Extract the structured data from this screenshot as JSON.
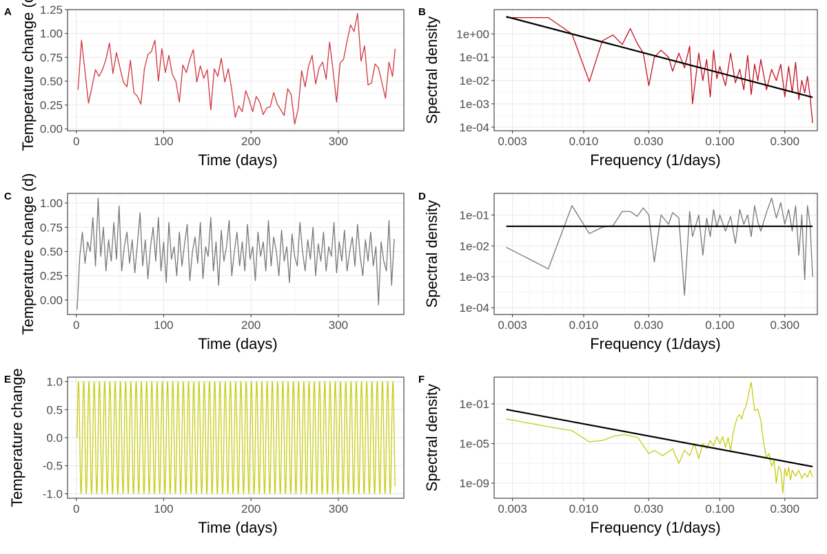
{
  "colors": {
    "panel_a": "#d1343f",
    "panel_b": "#c40f1f",
    "panel_c": "#777777",
    "panel_d": "#777777",
    "panel_e": "#c6cc12",
    "panel_f": "#c6cc12",
    "fit_line": "#000000",
    "grid_major": "#ebebeb",
    "grid_minor": "#f4f4f4",
    "frame": "#333333"
  },
  "chart_data": [
    {
      "panel": "A",
      "type": "line",
      "xlabel": "Time (days)",
      "ylabel": "Temperature change (d)",
      "xlim": [
        -10,
        375
      ],
      "ylim": [
        -0.02,
        1.25
      ],
      "xticks": [
        0,
        100,
        200,
        300
      ],
      "yticks": [
        0.0,
        0.25,
        0.5,
        0.75,
        1.0,
        1.25
      ],
      "ytick_labels": [
        "0.00",
        "0.25",
        "0.50",
        "0.75",
        "1.00",
        "1.25"
      ],
      "grid": true,
      "series": [
        {
          "x": [
            2,
            6,
            10,
            14,
            18,
            22,
            26,
            30,
            34,
            38,
            42,
            46,
            50,
            54,
            58,
            62,
            66,
            70,
            74,
            78,
            82,
            86,
            90,
            94,
            98,
            102,
            106,
            110,
            114,
            118,
            122,
            126,
            130,
            134,
            138,
            142,
            146,
            150,
            154,
            158,
            162,
            166,
            170,
            174,
            178,
            182,
            186,
            190,
            194,
            198,
            202,
            206,
            210,
            214,
            218,
            222,
            226,
            230,
            234,
            238,
            242,
            246,
            250,
            254,
            258,
            262,
            266,
            270,
            274,
            278,
            282,
            286,
            290,
            294,
            298,
            302,
            306,
            310,
            314,
            318,
            322,
            326,
            330,
            334,
            338,
            342,
            346,
            350,
            354,
            358,
            362,
            365
          ],
          "y": [
            0.41,
            0.93,
            0.6,
            0.27,
            0.44,
            0.62,
            0.55,
            0.62,
            0.73,
            0.9,
            0.58,
            0.8,
            0.64,
            0.49,
            0.44,
            0.72,
            0.38,
            0.34,
            0.26,
            0.63,
            0.78,
            0.81,
            0.93,
            0.5,
            0.84,
            0.59,
            0.77,
            0.57,
            0.5,
            0.28,
            0.67,
            0.59,
            0.73,
            0.83,
            0.49,
            0.66,
            0.53,
            0.62,
            0.2,
            0.63,
            0.55,
            0.74,
            0.49,
            0.63,
            0.41,
            0.12,
            0.24,
            0.18,
            0.4,
            0.3,
            0.18,
            0.34,
            0.28,
            0.15,
            0.22,
            0.23,
            0.38,
            0.26,
            0.2,
            0.14,
            0.42,
            0.36,
            0.05,
            0.21,
            0.61,
            0.44,
            0.66,
            0.77,
            0.47,
            0.64,
            0.7,
            0.52,
            0.91,
            0.61,
            0.28,
            0.69,
            0.73,
            0.92,
            1.09,
            1.02,
            1.21,
            0.71,
            0.87,
            0.46,
            0.48,
            0.68,
            0.64,
            0.48,
            0.32,
            0.7,
            0.55,
            0.84
          ]
        }
      ]
    },
    {
      "panel": "B",
      "type": "line",
      "xlabel": "Frequency (1/days)",
      "ylabel": "Spectral density",
      "xscale": "log",
      "yscale": "log",
      "xlim": [
        0.0022,
        0.52
      ],
      "ylim": [
        7e-05,
        11
      ],
      "xticks": [
        0.003,
        0.01,
        0.03,
        0.1,
        0.3
      ],
      "xtick_labels": [
        "0.003",
        "0.010",
        "0.030",
        "0.100",
        "0.300"
      ],
      "yticks": [
        0.0001,
        0.001,
        0.01,
        0.1,
        1
      ],
      "ytick_labels": [
        "1e-04",
        "1e-03",
        "1e-02",
        "1e-01",
        "1e+00"
      ],
      "grid": true,
      "series": [
        {
          "x": [
            0.0027,
            0.0055,
            0.0082,
            0.011,
            0.0137,
            0.0164,
            0.0192,
            0.022,
            0.0247,
            0.0274,
            0.0301,
            0.033,
            0.037,
            0.042,
            0.045,
            0.05,
            0.055,
            0.06,
            0.063,
            0.07,
            0.075,
            0.08,
            0.085,
            0.09,
            0.095,
            0.1,
            0.11,
            0.12,
            0.13,
            0.14,
            0.15,
            0.16,
            0.17,
            0.18,
            0.19,
            0.2,
            0.22,
            0.24,
            0.26,
            0.28,
            0.3,
            0.32,
            0.34,
            0.36,
            0.38,
            0.4,
            0.42,
            0.44,
            0.46,
            0.48
          ],
          "y": [
            5,
            5,
            1.0,
            0.009,
            0.5,
            0.9,
            0.35,
            1.7,
            0.4,
            0.15,
            0.006,
            0.1,
            0.2,
            0.1,
            0.025,
            0.15,
            0.035,
            0.3,
            0.001,
            0.15,
            0.01,
            0.08,
            0.002,
            0.2,
            0.012,
            0.04,
            0.006,
            0.15,
            0.008,
            0.03,
            0.004,
            0.12,
            0.0025,
            0.05,
            0.01,
            0.08,
            0.004,
            0.03,
            0.01,
            0.05,
            0.002,
            0.04,
            0.003,
            0.06,
            0.0015,
            0.01,
            0.003,
            0.015,
            0.002,
            0.00015
          ]
        }
      ],
      "fit_line": {
        "x": [
          0.0027,
          0.48
        ],
        "y": [
          5.5,
          0.0019
        ]
      }
    },
    {
      "panel": "C",
      "type": "line",
      "xlabel": "Time (days)",
      "ylabel": "Temperature change (d)",
      "xlim": [
        -10,
        375
      ],
      "ylim": [
        -0.15,
        1.1
      ],
      "xticks": [
        0,
        100,
        200,
        300
      ],
      "yticks": [
        0.0,
        0.25,
        0.5,
        0.75,
        1.0
      ],
      "ytick_labels": [
        "0.00",
        "0.25",
        "0.50",
        "0.75",
        "1.00"
      ],
      "grid": true,
      "series": [
        {
          "x": [
            1,
            4,
            7,
            10,
            13,
            16,
            19,
            22,
            25,
            28,
            31,
            34,
            37,
            40,
            43,
            46,
            49,
            52,
            55,
            58,
            61,
            64,
            67,
            70,
            73,
            76,
            79,
            82,
            85,
            88,
            91,
            94,
            97,
            100,
            103,
            106,
            109,
            112,
            115,
            118,
            121,
            124,
            127,
            130,
            133,
            136,
            139,
            142,
            145,
            148,
            151,
            154,
            157,
            160,
            163,
            166,
            169,
            172,
            175,
            178,
            181,
            184,
            187,
            190,
            193,
            196,
            199,
            202,
            205,
            208,
            211,
            214,
            217,
            220,
            223,
            226,
            229,
            232,
            235,
            238,
            241,
            244,
            247,
            250,
            253,
            256,
            259,
            262,
            265,
            268,
            271,
            274,
            277,
            280,
            283,
            286,
            289,
            292,
            295,
            298,
            301,
            304,
            307,
            310,
            313,
            316,
            319,
            322,
            325,
            328,
            331,
            334,
            337,
            340,
            343,
            346,
            349,
            352,
            355,
            358,
            361,
            364
          ],
          "y": [
            -0.1,
            0.45,
            0.7,
            0.38,
            0.6,
            0.5,
            0.85,
            0.35,
            1.05,
            0.45,
            0.75,
            0.3,
            0.62,
            0.4,
            0.8,
            0.42,
            0.97,
            0.3,
            0.55,
            0.7,
            0.38,
            0.62,
            0.28,
            0.58,
            0.9,
            0.35,
            0.62,
            0.22,
            0.55,
            0.75,
            0.4,
            0.85,
            0.3,
            0.6,
            0.18,
            0.8,
            0.42,
            0.55,
            0.25,
            0.7,
            0.35,
            0.58,
            0.78,
            0.2,
            0.5,
            0.65,
            0.38,
            0.8,
            0.22,
            0.55,
            0.45,
            0.85,
            0.3,
            0.6,
            0.15,
            0.72,
            0.4,
            0.55,
            0.82,
            0.25,
            0.5,
            0.7,
            0.35,
            0.6,
            0.3,
            0.78,
            0.42,
            0.55,
            0.2,
            0.7,
            0.45,
            0.6,
            0.3,
            0.82,
            0.35,
            0.65,
            0.5,
            0.25,
            0.72,
            0.4,
            0.55,
            0.18,
            0.68,
            0.45,
            0.35,
            0.8,
            0.5,
            0.3,
            0.62,
            0.42,
            0.75,
            0.25,
            0.58,
            0.4,
            0.7,
            0.3,
            0.55,
            0.45,
            0.8,
            0.28,
            0.6,
            0.4,
            0.72,
            0.3,
            0.5,
            0.65,
            0.35,
            0.78,
            0.45,
            0.25,
            0.62,
            0.4,
            0.7,
            0.35,
            0.55,
            -0.05,
            0.6,
            0.4,
            0.3,
            0.82,
            0.15,
            0.63
          ]
        }
      ]
    },
    {
      "panel": "D",
      "type": "line",
      "xlabel": "Frequency (1/days)",
      "ylabel": "Spectral density",
      "xscale": "log",
      "yscale": "log",
      "xlim": [
        0.0022,
        0.52
      ],
      "ylim": [
        6e-05,
        0.5
      ],
      "xticks": [
        0.003,
        0.01,
        0.03,
        0.1,
        0.3
      ],
      "xtick_labels": [
        "0.003",
        "0.010",
        "0.030",
        "0.100",
        "0.300"
      ],
      "yticks": [
        0.0001,
        0.001,
        0.01,
        0.1
      ],
      "ytick_labels": [
        "1e-04",
        "1e-03",
        "1e-02",
        "1e-01"
      ],
      "grid": true,
      "series": [
        {
          "x": [
            0.0027,
            0.0055,
            0.0082,
            0.011,
            0.0137,
            0.0164,
            0.0192,
            0.022,
            0.0247,
            0.0274,
            0.0301,
            0.033,
            0.037,
            0.042,
            0.045,
            0.05,
            0.055,
            0.06,
            0.063,
            0.07,
            0.075,
            0.08,
            0.085,
            0.09,
            0.095,
            0.1,
            0.11,
            0.12,
            0.13,
            0.14,
            0.15,
            0.16,
            0.17,
            0.18,
            0.19,
            0.2,
            0.22,
            0.24,
            0.26,
            0.28,
            0.3,
            0.32,
            0.34,
            0.36,
            0.38,
            0.4,
            0.42,
            0.44,
            0.46,
            0.48
          ],
          "y": [
            0.009,
            0.0018,
            0.2,
            0.025,
            0.04,
            0.045,
            0.13,
            0.13,
            0.09,
            0.17,
            0.1,
            0.003,
            0.1,
            0.05,
            0.12,
            0.08,
            0.00025,
            0.13,
            0.02,
            0.1,
            0.005,
            0.08,
            0.02,
            0.15,
            0.04,
            0.1,
            0.03,
            0.09,
            0.012,
            0.15,
            0.05,
            0.1,
            0.02,
            0.2,
            0.06,
            0.03,
            0.12,
            0.35,
            0.08,
            0.25,
            0.05,
            0.15,
            0.03,
            0.2,
            0.005,
            0.1,
            0.0008,
            0.2,
            0.05,
            0.001
          ]
        }
      ],
      "fit_line": {
        "x": [
          0.0027,
          0.48
        ],
        "y": [
          0.043,
          0.043
        ]
      }
    },
    {
      "panel": "E",
      "type": "line",
      "xlabel": "Time (days)",
      "ylabel": "Temperature change",
      "xlim": [
        -10,
        375
      ],
      "ylim": [
        -1.08,
        1.08
      ],
      "xticks": [
        0,
        100,
        200,
        300
      ],
      "yticks": [
        -1.0,
        -0.5,
        0.0,
        0.5,
        1.0
      ],
      "ytick_labels": [
        "-1.0",
        "-0.5",
        "0.0",
        "0.5",
        "1.0"
      ],
      "grid": true,
      "signal": {
        "form": "sine",
        "amplitude": 1,
        "period_days": 6,
        "x_start": 1,
        "x_end": 365
      }
    },
    {
      "panel": "F",
      "type": "line",
      "xlabel": "Frequency (1/days)",
      "ylabel": "Spectral density",
      "xscale": "log",
      "yscale": "log",
      "xlim": [
        0.0022,
        0.52
      ],
      "ylim": [
        3e-11,
        50
      ],
      "xticks": [
        0.003,
        0.01,
        0.03,
        0.1,
        0.3
      ],
      "xtick_labels": [
        "0.003",
        "0.010",
        "0.030",
        "0.100",
        "0.300"
      ],
      "yticks": [
        1e-09,
        1e-05,
        0.1
      ],
      "ytick_labels": [
        "1e-09",
        "1e-05",
        "1e-01"
      ],
      "grid": true,
      "series": [
        {
          "x": [
            0.0027,
            0.0055,
            0.0082,
            0.011,
            0.0137,
            0.017,
            0.02,
            0.025,
            0.03,
            0.033,
            0.038,
            0.045,
            0.05,
            0.055,
            0.06,
            0.065,
            0.07,
            0.075,
            0.08,
            0.085,
            0.09,
            0.095,
            0.1,
            0.105,
            0.11,
            0.115,
            0.12,
            0.125,
            0.13,
            0.135,
            0.14,
            0.145,
            0.15,
            0.155,
            0.16,
            0.165,
            0.17,
            0.175,
            0.18,
            0.19,
            0.2,
            0.21,
            0.22,
            0.23,
            0.24,
            0.25,
            0.26,
            0.27,
            0.28,
            0.29,
            0.3,
            0.31,
            0.32,
            0.33,
            0.34,
            0.36,
            0.38,
            0.4,
            0.42,
            0.44,
            0.46,
            0.48
          ],
          "y": [
            0.003,
            0.0005,
            0.0002,
            1.5e-05,
            2e-05,
            6e-05,
            8e-05,
            4e-05,
            1e-06,
            2e-06,
            6e-07,
            3e-06,
            1e-07,
            2e-06,
            6e-07,
            1e-05,
            3e-07,
            1e-05,
            3e-06,
            2e-05,
            6e-06,
            5e-05,
            1e-05,
            5e-05,
            4e-06,
            4e-05,
            2e-06,
            0.0001,
            0.001,
            0.005,
            0.008,
            0.003,
            0.02,
            0.05,
            0.3,
            3,
            15,
            0.5,
            0.02,
            0.03,
            0.002,
            1e-05,
            4e-07,
            1e-06,
            5e-08,
            2e-07,
            1e-09,
            5e-08,
            2e-08,
            1e-10,
            3e-08,
            5e-09,
            4e-08,
            2e-09,
            2e-08,
            5e-09,
            2e-08,
            3e-09,
            1e-08,
            4e-09,
            2e-08,
            4e-09
          ]
        }
      ],
      "fit_line": {
        "x": [
          0.0027,
          0.48
        ],
        "y": [
          0.0275,
          4.7e-08
        ]
      }
    }
  ]
}
